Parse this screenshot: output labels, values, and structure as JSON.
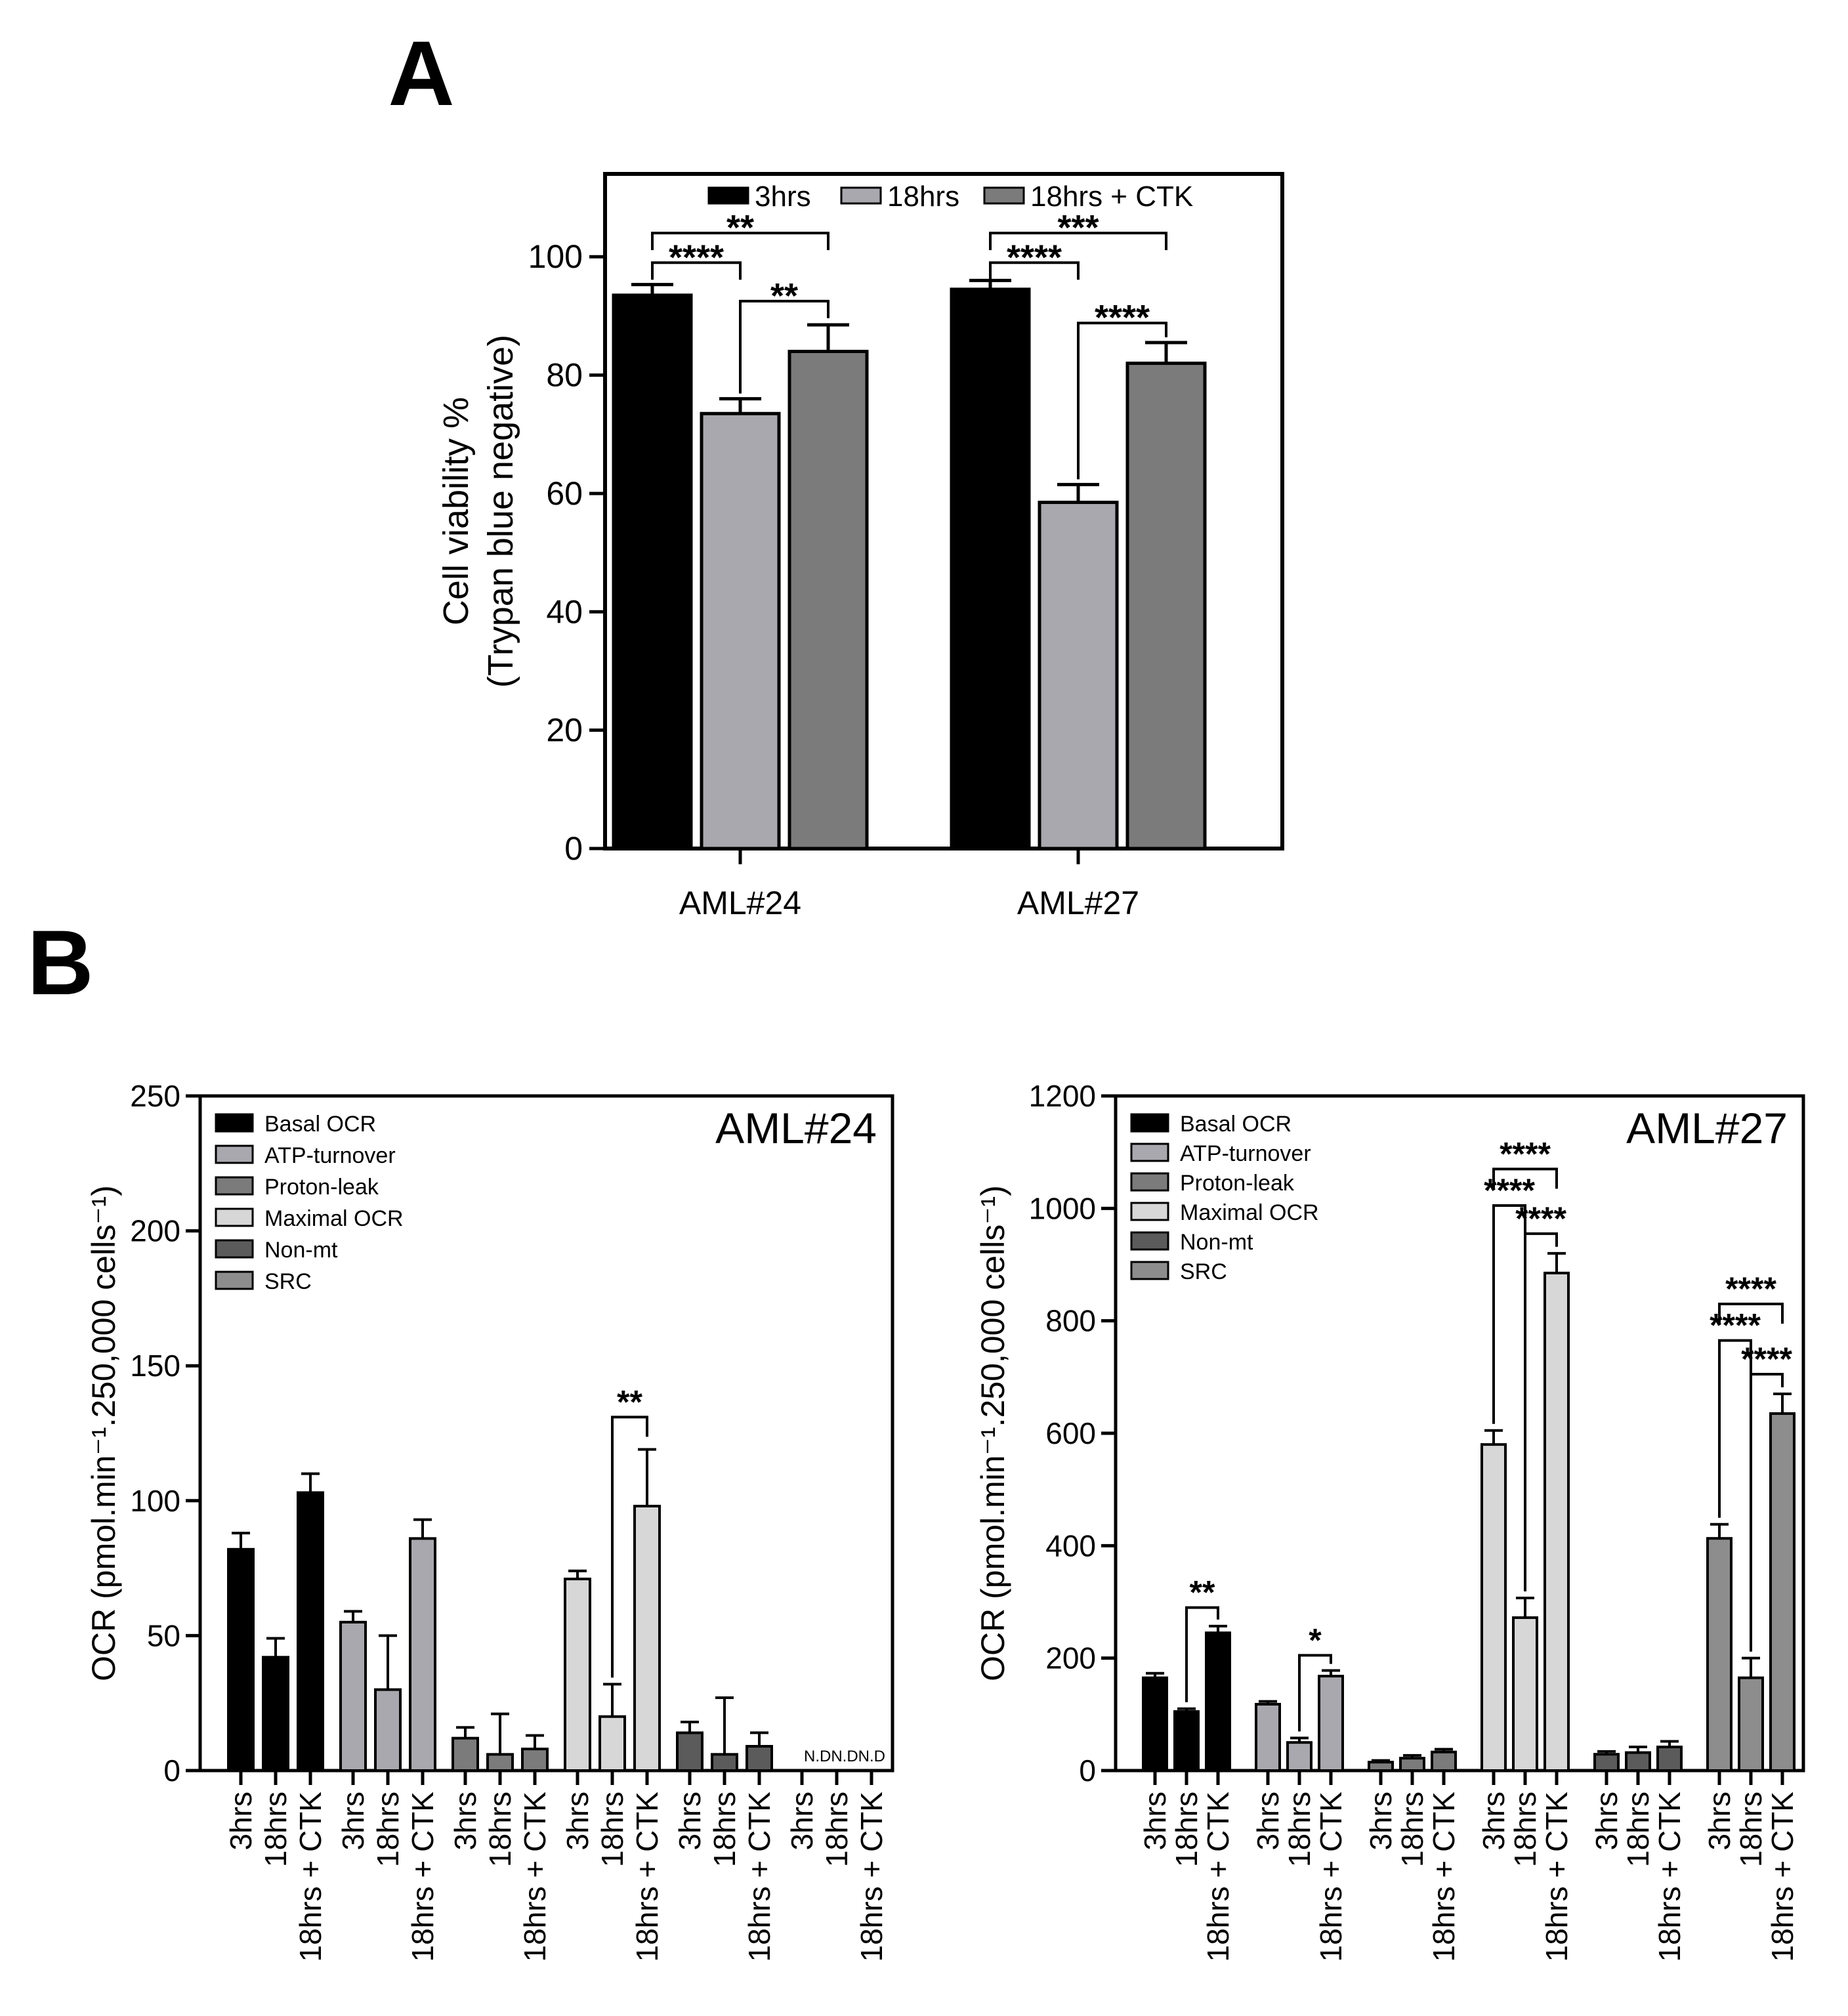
{
  "panel_labels": {
    "a": "A",
    "b": "B"
  },
  "colors": {
    "black": "#000000",
    "light_gray": "#a9a8ae",
    "mid_gray": "#7b7b7b",
    "lightest_gray": "#d7d7d7",
    "dark_gray": "#5b5b5b",
    "medium_gray": "#8d8d8d"
  },
  "chart_data": [
    {
      "id": "panel-a",
      "type": "bar",
      "ylabel": [
        "Cell viability %",
        "(Trypan blue negative)"
      ],
      "ylim": [
        0,
        114
      ],
      "yticks": [
        0,
        20,
        40,
        60,
        80,
        100
      ],
      "categories": [
        "AML#24",
        "AML#27"
      ],
      "legend": "top",
      "series": [
        {
          "name": "3hrs",
          "color": "#000000",
          "values": [
            93.5,
            94.5
          ],
          "errors": [
            1.8,
            1.5
          ]
        },
        {
          "name": "18hrs",
          "color": "#a9a8ae",
          "values": [
            73.5,
            58.5
          ],
          "errors": [
            2.5,
            3.0
          ]
        },
        {
          "name": "18hrs + CTK",
          "color": "#7b7b7b",
          "values": [
            84,
            82
          ],
          "errors": [
            4.5,
            3.5
          ]
        }
      ],
      "significance": [
        {
          "group": 0,
          "from": 0,
          "to": 2,
          "label": "**",
          "level": 104
        },
        {
          "group": 0,
          "from": 0,
          "to": 1,
          "label": "****",
          "level": 99
        },
        {
          "group": 0,
          "from": 1,
          "to": 2,
          "label": "**",
          "level": 92.5
        },
        {
          "group": 1,
          "from": 0,
          "to": 2,
          "label": "***",
          "level": 104
        },
        {
          "group": 1,
          "from": 0,
          "to": 1,
          "label": "****",
          "level": 99
        },
        {
          "group": 1,
          "from": 1,
          "to": 2,
          "label": "****",
          "level": 88.8
        }
      ]
    },
    {
      "id": "panel-b-left",
      "type": "bar",
      "title": "AML#24",
      "ylabel": "OCR (pmol.min⁻¹.250,000 cells⁻¹)",
      "ylim": [
        0,
        250
      ],
      "yticks": [
        0,
        50,
        100,
        150,
        200,
        250
      ],
      "bar_labels": [
        "3hrs",
        "18hrs",
        "18hrs + CTK"
      ],
      "legend": "top-left",
      "groups": [
        {
          "name": "Basal OCR",
          "color": "#000000",
          "values": [
            82,
            42,
            103
          ],
          "errors": [
            6,
            7,
            7
          ]
        },
        {
          "name": "ATP-turnover",
          "color": "#a9a8ae",
          "values": [
            55,
            30,
            86
          ],
          "errors": [
            4,
            20,
            7
          ]
        },
        {
          "name": "Proton-leak",
          "color": "#7b7b7b",
          "values": [
            12,
            6,
            8
          ],
          "errors": [
            4,
            15,
            5
          ]
        },
        {
          "name": "Maximal OCR",
          "color": "#d7d7d7",
          "values": [
            71,
            20,
            98
          ],
          "errors": [
            3,
            12,
            21
          ]
        },
        {
          "name": "Non-mt",
          "color": "#5b5b5b",
          "values": [
            14,
            6,
            9
          ],
          "errors": [
            4,
            21,
            5
          ]
        },
        {
          "name": "SRC",
          "color": "#8d8d8d",
          "values": [
            null,
            null,
            null
          ],
          "errors": [
            null,
            null,
            null
          ]
        }
      ],
      "nd_label": "N.DN.DN.D",
      "significance": [
        {
          "group": 3,
          "from": 1,
          "to": 2,
          "label": "**",
          "level": 131
        }
      ]
    },
    {
      "id": "panel-b-right",
      "type": "bar",
      "title": "AML#27",
      "ylabel": "OCR (pmol.min⁻¹.250,000 cells⁻¹)",
      "ylim": [
        0,
        1200
      ],
      "yticks": [
        0,
        200,
        400,
        600,
        800,
        1000,
        1200
      ],
      "bar_labels": [
        "3hrs",
        "18hrs",
        "18hrs + CTK"
      ],
      "legend": "top-left",
      "groups": [
        {
          "name": "Basal OCR",
          "color": "#000000",
          "values": [
            165,
            105,
            245
          ],
          "errors": [
            8,
            5,
            12
          ]
        },
        {
          "name": "ATP-turnover",
          "color": "#a9a8ae",
          "values": [
            118,
            50,
            168
          ],
          "errors": [
            5,
            8,
            10
          ]
        },
        {
          "name": "Proton-leak",
          "color": "#7b7b7b",
          "values": [
            15,
            22,
            33
          ],
          "errors": [
            3,
            5,
            5
          ]
        },
        {
          "name": "Maximal OCR",
          "color": "#d7d7d7",
          "values": [
            580,
            272,
            885
          ],
          "errors": [
            25,
            35,
            35
          ]
        },
        {
          "name": "Non-mt",
          "color": "#5b5b5b",
          "values": [
            29,
            32,
            42
          ],
          "errors": [
            5,
            10,
            10
          ]
        },
        {
          "name": "SRC",
          "color": "#8d8d8d",
          "values": [
            413,
            165,
            635
          ],
          "errors": [
            25,
            35,
            35
          ]
        }
      ],
      "significance": [
        {
          "group": 0,
          "from": 1,
          "to": 2,
          "label": "**",
          "level": 290
        },
        {
          "group": 1,
          "from": 1,
          "to": 2,
          "label": "*",
          "level": 205
        },
        {
          "group": 3,
          "from": 0,
          "to": 2,
          "label": "****",
          "level": 1070
        },
        {
          "group": 3,
          "from": 0,
          "to": 1,
          "label": "****",
          "level": 1005
        },
        {
          "group": 3,
          "from": 1,
          "to": 2,
          "label": "****",
          "level": 955
        },
        {
          "group": 5,
          "from": 0,
          "to": 2,
          "label": "****",
          "level": 830
        },
        {
          "group": 5,
          "from": 0,
          "to": 1,
          "label": "****",
          "level": 765
        },
        {
          "group": 5,
          "from": 1,
          "to": 2,
          "label": "****",
          "level": 705
        }
      ]
    }
  ]
}
